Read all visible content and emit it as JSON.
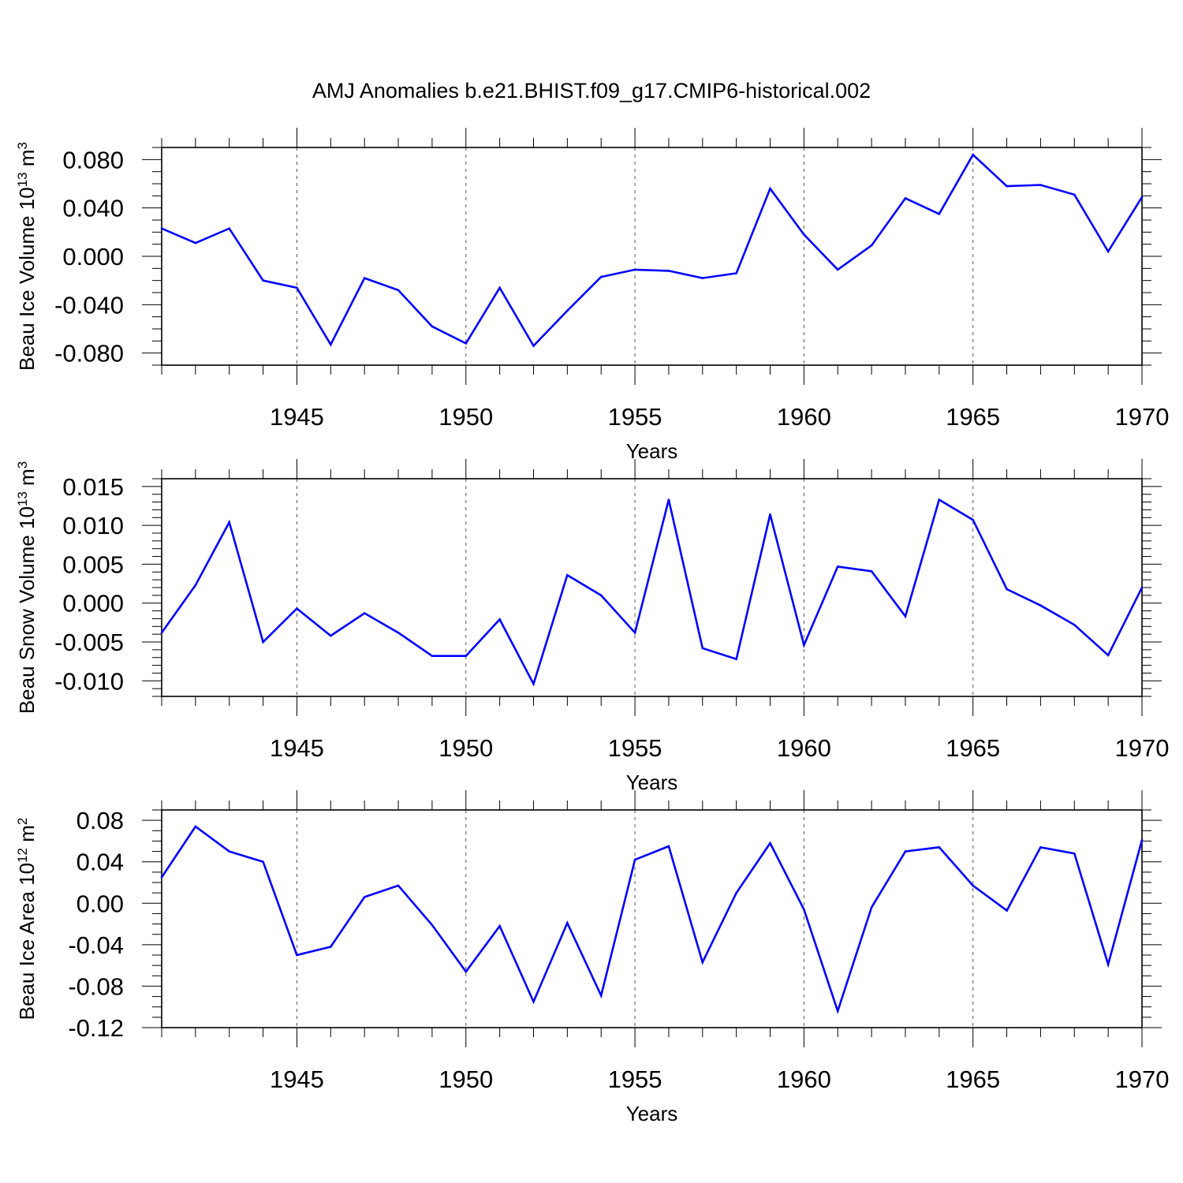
{
  "title": "AMJ Anomalies b.e21.BHIST.f09_g17.CMIP6-historical.002",
  "colors": {
    "line": "#0000ff",
    "axes": "#000000",
    "grid": "#555555"
  },
  "chart_data": [
    {
      "type": "line",
      "xlabel": "Years",
      "ylabel": {
        "base": "Beau Ice Volume 10",
        "exp": "13",
        "unit": " m",
        "unit_exp": "3"
      },
      "xlim": [
        1941,
        1970
      ],
      "ylim": [
        -0.09,
        0.09
      ],
      "xticks": [
        1945,
        1950,
        1955,
        1960,
        1965,
        1970
      ],
      "yticks": [
        -0.08,
        -0.04,
        0.0,
        0.04,
        0.08
      ],
      "ytick_labels": [
        "-0.080",
        "-0.040",
        "0.000",
        "0.040",
        "0.080"
      ],
      "yminor_step": 0.01,
      "grid": "dashed vertical at major x ticks",
      "x": [
        1941,
        1942,
        1943,
        1944,
        1945,
        1946,
        1947,
        1948,
        1949,
        1950,
        1951,
        1952,
        1953,
        1954,
        1955,
        1956,
        1957,
        1958,
        1959,
        1960,
        1961,
        1962,
        1963,
        1964,
        1965,
        1966,
        1967,
        1968,
        1969,
        1970
      ],
      "values": [
        0.023,
        0.011,
        0.023,
        -0.02,
        -0.026,
        -0.073,
        -0.018,
        -0.028,
        -0.058,
        -0.072,
        -0.026,
        -0.074,
        -0.045,
        -0.017,
        -0.011,
        -0.012,
        -0.018,
        -0.014,
        0.056,
        0.018,
        -0.011,
        0.009,
        0.048,
        0.035,
        0.084,
        0.058,
        0.059,
        0.051,
        0.004,
        0.049
      ]
    },
    {
      "type": "line",
      "xlabel": "Years",
      "ylabel": {
        "base": "Beau Snow Volume 10",
        "exp": "13",
        "unit": " m",
        "unit_exp": "3"
      },
      "xlim": [
        1941,
        1970
      ],
      "ylim": [
        -0.012,
        0.016
      ],
      "xticks": [
        1945,
        1950,
        1955,
        1960,
        1965,
        1970
      ],
      "yticks": [
        -0.01,
        -0.005,
        0.0,
        0.005,
        0.01,
        0.015
      ],
      "ytick_labels": [
        "-0.010",
        "-0.005",
        "0.000",
        "0.005",
        "0.010",
        "0.015"
      ],
      "yminor_step": 0.001,
      "grid": "dashed vertical at major x ticks",
      "x": [
        1941,
        1942,
        1943,
        1944,
        1945,
        1946,
        1947,
        1948,
        1949,
        1950,
        1951,
        1952,
        1953,
        1954,
        1955,
        1956,
        1957,
        1958,
        1959,
        1960,
        1961,
        1962,
        1963,
        1964,
        1965,
        1966,
        1967,
        1968,
        1969,
        1970
      ],
      "values": [
        -0.0038,
        0.0023,
        0.0104,
        -0.005,
        -0.0007,
        -0.0042,
        -0.0013,
        -0.0038,
        -0.0068,
        -0.0068,
        -0.0021,
        -0.0104,
        0.0036,
        0.001,
        -0.0038,
        0.0133,
        -0.0058,
        -0.0072,
        0.0114,
        -0.0054,
        0.0047,
        0.0041,
        -0.0017,
        0.0133,
        0.0107,
        0.0018,
        -0.0003,
        -0.0028,
        -0.0067,
        0.002
      ]
    },
    {
      "type": "line",
      "xlabel": "Years",
      "ylabel": {
        "base": "Beau Ice Area 10",
        "exp": "12",
        "unit": " m",
        "unit_exp": "2"
      },
      "xlim": [
        1941,
        1970
      ],
      "ylim": [
        -0.12,
        0.09
      ],
      "xticks": [
        1945,
        1950,
        1955,
        1960,
        1965,
        1970
      ],
      "yticks": [
        -0.12,
        -0.08,
        -0.04,
        0.0,
        0.04,
        0.08
      ],
      "ytick_labels": [
        "-0.12",
        "-0.08",
        "-0.04",
        "0.00",
        "0.04",
        "0.08"
      ],
      "yminor_step": 0.01,
      "grid": "dashed vertical at major x ticks",
      "x": [
        1941,
        1942,
        1943,
        1944,
        1945,
        1946,
        1947,
        1948,
        1949,
        1950,
        1951,
        1952,
        1953,
        1954,
        1955,
        1956,
        1957,
        1958,
        1959,
        1960,
        1961,
        1962,
        1963,
        1964,
        1965,
        1966,
        1967,
        1968,
        1969,
        1970
      ],
      "values": [
        0.025,
        0.074,
        0.05,
        0.04,
        -0.05,
        -0.042,
        0.006,
        0.017,
        -0.021,
        -0.066,
        -0.022,
        -0.095,
        -0.019,
        -0.089,
        0.042,
        0.055,
        -0.057,
        0.01,
        0.058,
        -0.006,
        -0.104,
        -0.004,
        0.05,
        0.054,
        0.017,
        -0.007,
        0.054,
        0.048,
        -0.059,
        0.061
      ]
    }
  ]
}
